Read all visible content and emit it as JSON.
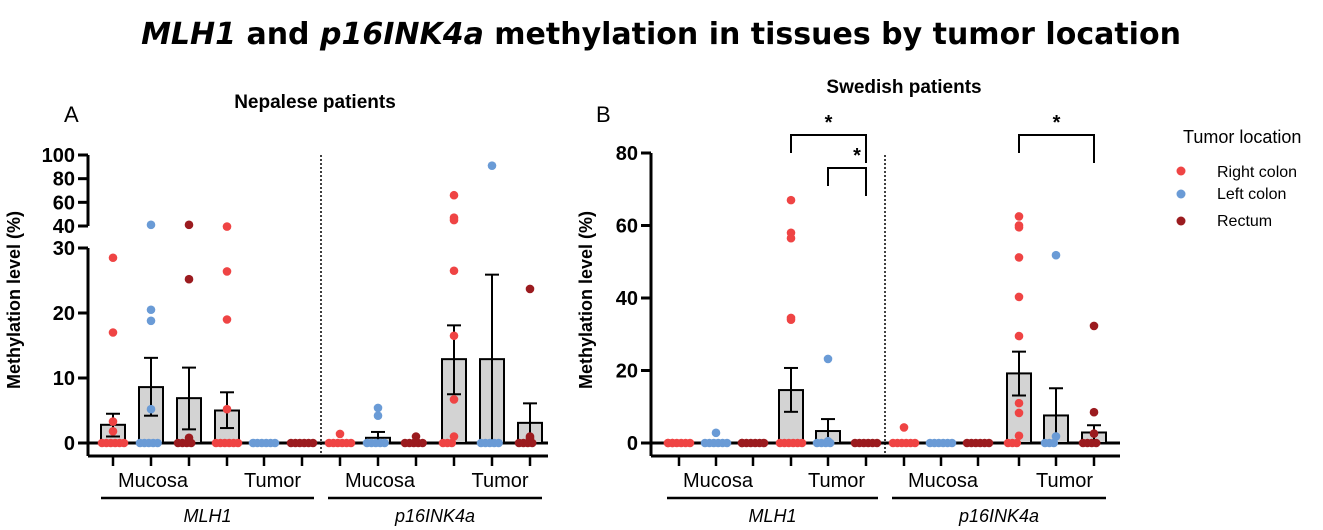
{
  "title": {
    "part1": "MLH1",
    "part2": " and ",
    "part3": "p16INK4a",
    "part4": " methylation in tissues by tumor location"
  },
  "legend": {
    "title": "Tumor location",
    "entries": [
      {
        "label": "Right colon",
        "color": "#ef4444"
      },
      {
        "label": "Left colon",
        "color": "#6a9bd6"
      },
      {
        "label": "Rectum",
        "color": "#9b1b1f"
      }
    ]
  },
  "chart_data": [
    {
      "type": "bar",
      "panel": "A",
      "title": "Nepalese patients",
      "ylabel": "Methylation level  (%)",
      "ylim": [
        0,
        100
      ],
      "axis_break": [
        30,
        40
      ],
      "yticks_lower": [
        0,
        10,
        20,
        30
      ],
      "yticks_upper": [
        40,
        60,
        80,
        100
      ],
      "tissue_labels": [
        "Mucosa",
        "Tumor",
        "Mucosa",
        "Tumor"
      ],
      "gene_labels": [
        "MLH1",
        "p16INK4a"
      ],
      "groups": [
        {
          "gene": "MLH1",
          "tissue": "Mucosa",
          "location": "Right colon",
          "mean": 2.8,
          "sem": [
            1.0,
            4.5
          ],
          "points": [
            28.5,
            17,
            3.3,
            1.8,
            0,
            0,
            0,
            0,
            0,
            0
          ]
        },
        {
          "gene": "MLH1",
          "tissue": "Mucosa",
          "location": "Left colon",
          "mean": 8.6,
          "sem": [
            4.2,
            13.1
          ],
          "points": [
            41,
            20.5,
            18.8,
            5.2,
            0,
            0,
            0,
            0,
            0
          ]
        },
        {
          "gene": "MLH1",
          "tissue": "Mucosa",
          "location": "Rectum",
          "mean": 6.9,
          "sem": [
            2.1,
            11.6
          ],
          "points": [
            41,
            25.2,
            0.8,
            0.3,
            0,
            0,
            0,
            0
          ]
        },
        {
          "gene": "MLH1",
          "tissue": "Tumor",
          "location": "Right colon",
          "mean": 5.0,
          "sem": [
            2.3,
            7.8
          ],
          "points": [
            39.5,
            26.4,
            19,
            5.2,
            0,
            0,
            0,
            0,
            0,
            0
          ]
        },
        {
          "gene": "MLH1",
          "tissue": "Tumor",
          "location": "Left colon",
          "mean": 0,
          "sem": [
            0,
            0
          ],
          "points": [
            0,
            0,
            0,
            0,
            0,
            0
          ]
        },
        {
          "gene": "MLH1",
          "tissue": "Tumor",
          "location": "Rectum",
          "mean": 0,
          "sem": [
            0,
            0
          ],
          "points": [
            0,
            0,
            0,
            0,
            0,
            0
          ]
        },
        {
          "gene": "p16INK4a",
          "tissue": "Mucosa",
          "location": "Right colon",
          "mean": 0,
          "sem": [
            0,
            0
          ],
          "points": [
            1.4,
            0,
            0,
            0,
            0,
            0,
            0
          ]
        },
        {
          "gene": "p16INK4a",
          "tissue": "Mucosa",
          "location": "Left colon",
          "mean": 0.8,
          "sem": [
            0,
            1.7
          ],
          "points": [
            5.4,
            4.2,
            0,
            0,
            0,
            0,
            0
          ]
        },
        {
          "gene": "p16INK4a",
          "tissue": "Mucosa",
          "location": "Rectum",
          "mean": 0,
          "sem": [
            0,
            0
          ],
          "points": [
            1.0,
            0.2,
            0,
            0,
            0,
            0,
            0
          ]
        },
        {
          "gene": "p16INK4a",
          "tissue": "Tumor",
          "location": "Right colon",
          "mean": 12.9,
          "sem": [
            7.5,
            18.1
          ],
          "points": [
            66,
            47,
            45,
            26.5,
            16.5,
            6.7,
            1.0,
            0,
            0,
            0
          ]
        },
        {
          "gene": "p16INK4a",
          "tissue": "Tumor",
          "location": "Left colon",
          "mean": 12.9,
          "sem": [
            0,
            25.9
          ],
          "points": [
            91,
            0,
            0,
            0,
            0,
            0
          ]
        },
        {
          "gene": "p16INK4a",
          "tissue": "Tumor",
          "location": "Rectum",
          "mean": 3.1,
          "sem": [
            0,
            6.1
          ],
          "points": [
            23.7,
            1.0,
            0.7,
            0,
            0,
            0,
            0
          ]
        }
      ]
    },
    {
      "type": "bar",
      "panel": "B",
      "title": "Swedish patients",
      "ylabel": "Methylation level  (%)",
      "ylim": [
        0,
        80
      ],
      "yticks": [
        0,
        20,
        40,
        60,
        80
      ],
      "tissue_labels": [
        "Mucosa",
        "Tumor",
        "Mucosa",
        "Tumor"
      ],
      "gene_labels": [
        "MLH1",
        "p16INK4a"
      ],
      "significance": [
        {
          "from": "MLH1 Tumor Right colon",
          "to": "MLH1 Tumor Rectum",
          "label": "*"
        },
        {
          "from": "MLH1 Tumor Left colon",
          "to": "MLH1 Tumor Rectum",
          "label": "*"
        },
        {
          "from": "p16INK4a Tumor Right colon",
          "to": "p16INK4a Tumor Rectum",
          "label": "*"
        }
      ],
      "groups": [
        {
          "gene": "MLH1",
          "tissue": "Mucosa",
          "location": "Right colon",
          "mean": 0,
          "sem": [
            0,
            0
          ],
          "points": [
            0,
            0,
            0,
            0,
            0,
            0,
            0,
            0
          ]
        },
        {
          "gene": "MLH1",
          "tissue": "Mucosa",
          "location": "Left colon",
          "mean": 0,
          "sem": [
            0,
            0
          ],
          "points": [
            2.8,
            0,
            0,
            0,
            0,
            0,
            0
          ]
        },
        {
          "gene": "MLH1",
          "tissue": "Mucosa",
          "location": "Rectum",
          "mean": 0,
          "sem": [
            0,
            0
          ],
          "points": [
            0,
            0,
            0,
            0,
            0,
            0,
            0
          ]
        },
        {
          "gene": "MLH1",
          "tissue": "Tumor",
          "location": "Right colon",
          "mean": 14.6,
          "sem": [
            8.6,
            20.7
          ],
          "points": [
            67,
            58,
            56.5,
            34.5,
            34,
            0,
            0,
            0,
            0,
            0,
            0
          ]
        },
        {
          "gene": "MLH1",
          "tissue": "Tumor",
          "location": "Left colon",
          "mean": 3.3,
          "sem": [
            0,
            6.6
          ],
          "points": [
            23.2,
            0.5,
            0,
            0,
            0,
            0
          ]
        },
        {
          "gene": "MLH1",
          "tissue": "Tumor",
          "location": "Rectum",
          "mean": 0,
          "sem": [
            0,
            0
          ],
          "points": [
            0,
            0,
            0,
            0,
            0,
            0
          ]
        },
        {
          "gene": "p16INK4a",
          "tissue": "Mucosa",
          "location": "Right colon",
          "mean": 0,
          "sem": [
            0,
            0
          ],
          "points": [
            4.3,
            0,
            0,
            0,
            0,
            0,
            0
          ]
        },
        {
          "gene": "p16INK4a",
          "tissue": "Mucosa",
          "location": "Left colon",
          "mean": 0,
          "sem": [
            0,
            0
          ],
          "points": [
            0,
            0,
            0,
            0,
            0,
            0
          ]
        },
        {
          "gene": "p16INK4a",
          "tissue": "Mucosa",
          "location": "Rectum",
          "mean": 0,
          "sem": [
            0,
            0
          ],
          "points": [
            0,
            0,
            0,
            0,
            0,
            0
          ]
        },
        {
          "gene": "p16INK4a",
          "tissue": "Tumor",
          "location": "Right colon",
          "mean": 19.2,
          "sem": [
            13.1,
            25.2
          ],
          "points": [
            62.5,
            60,
            59.5,
            51.2,
            40.3,
            29.5,
            11,
            8.3,
            2,
            0,
            0,
            0
          ]
        },
        {
          "gene": "p16INK4a",
          "tissue": "Tumor",
          "location": "Left colon",
          "mean": 7.6,
          "sem": [
            0,
            15.1
          ],
          "points": [
            51.8,
            1.8,
            0,
            0,
            0
          ]
        },
        {
          "gene": "p16INK4a",
          "tissue": "Tumor",
          "location": "Rectum",
          "mean": 2.9,
          "sem": [
            0,
            4.9
          ],
          "points": [
            32.3,
            8.5,
            2.6,
            0,
            0,
            0,
            0
          ]
        }
      ]
    }
  ]
}
